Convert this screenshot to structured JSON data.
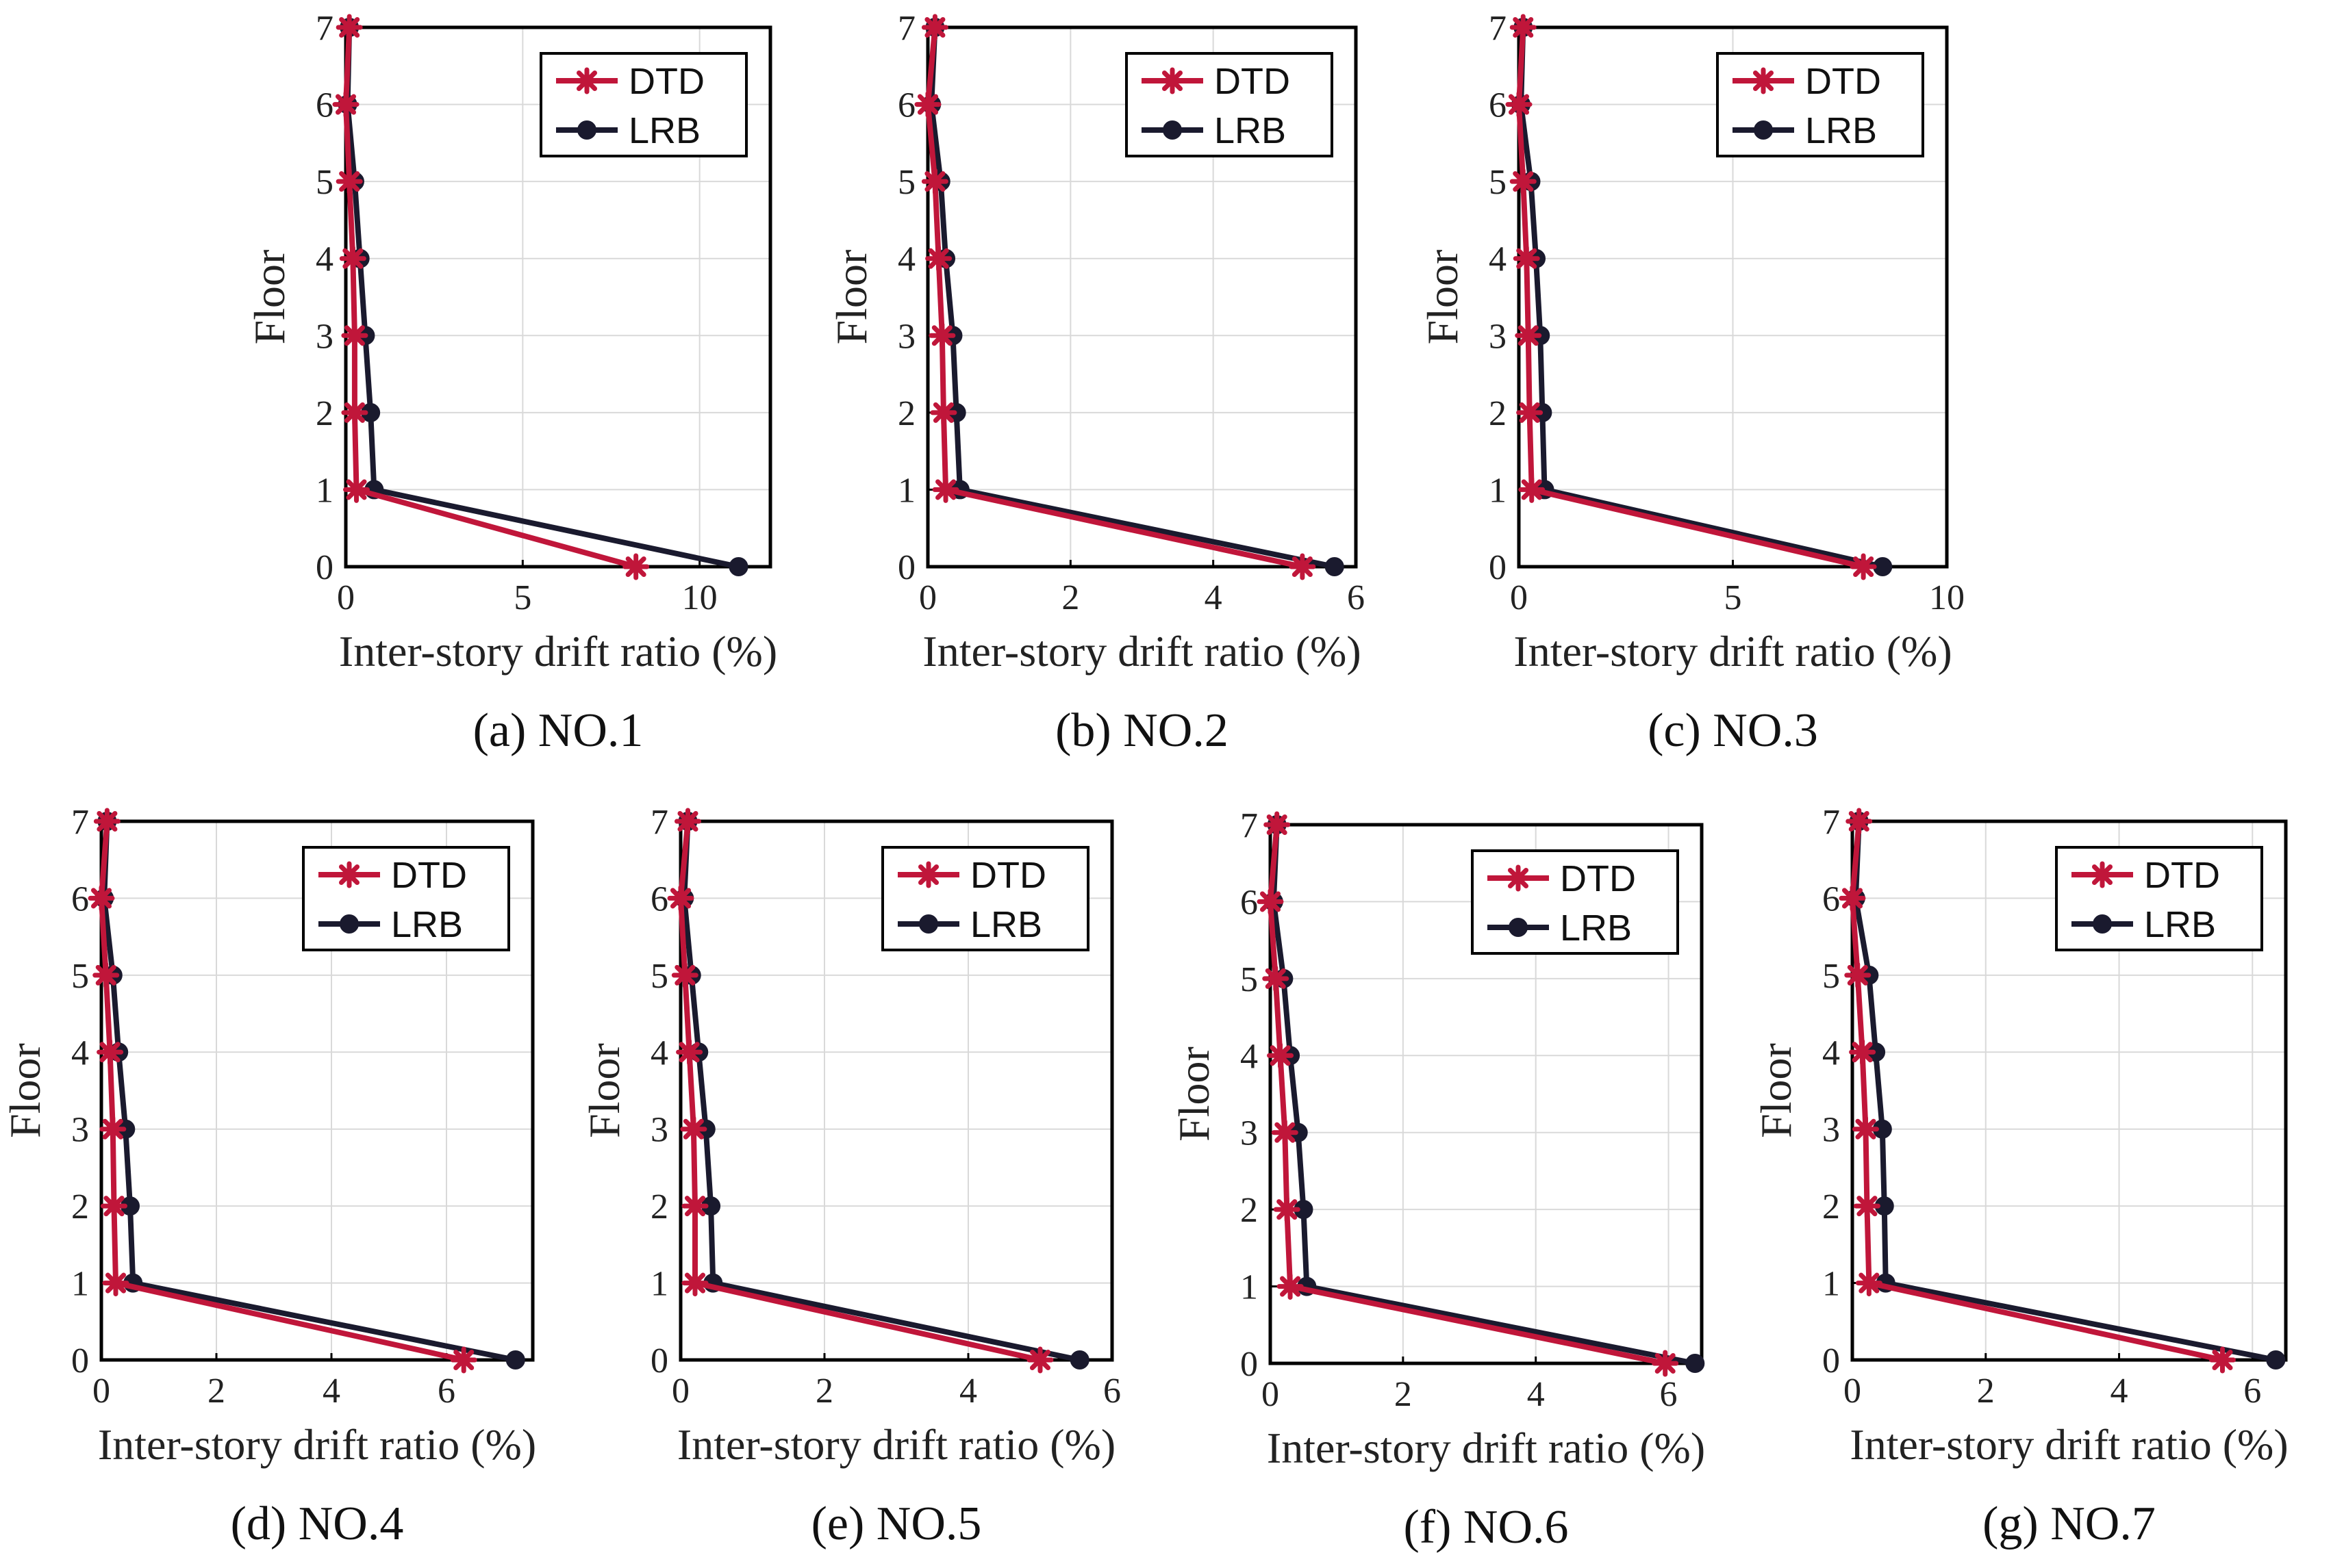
{
  "figure": {
    "colors": {
      "DTD": "#c0163a",
      "LRB": "#1a1a2e"
    },
    "legend_labels": [
      "DTD",
      "LRB"
    ]
  },
  "chart_data": [
    {
      "type": "line",
      "caption": "(a) NO.1",
      "xlabel": "Inter-story drift ratio (%)",
      "ylabel": "Floor",
      "xlim": [
        0,
        12
      ],
      "ylim": [
        0,
        7
      ],
      "xticks": [
        0,
        5,
        10
      ],
      "yticks": [
        0,
        1,
        2,
        3,
        4,
        5,
        6,
        7
      ],
      "grid": true,
      "legend": "top-right",
      "series": [
        {
          "name": "DTD",
          "x": [
            8.2,
            0.3,
            0.25,
            0.25,
            0.2,
            0.1,
            0.0,
            0.1
          ],
          "y": [
            0,
            1,
            2,
            3,
            4,
            5,
            6,
            7
          ]
        },
        {
          "name": "LRB",
          "x": [
            11.1,
            0.8,
            0.7,
            0.55,
            0.4,
            0.25,
            0.05,
            0.1
          ],
          "y": [
            0,
            1,
            2,
            3,
            4,
            5,
            6,
            7
          ]
        }
      ]
    },
    {
      "type": "line",
      "caption": "(b) NO.2",
      "xlabel": "Inter-story drift ratio (%)",
      "ylabel": "Floor",
      "xlim": [
        0,
        6
      ],
      "ylim": [
        0,
        7
      ],
      "xticks": [
        0,
        2,
        4,
        6
      ],
      "yticks": [
        0,
        1,
        2,
        3,
        4,
        5,
        6,
        7
      ],
      "grid": true,
      "legend": "top-right",
      "series": [
        {
          "name": "DTD",
          "x": [
            5.25,
            0.25,
            0.22,
            0.2,
            0.15,
            0.1,
            0.0,
            0.1
          ],
          "y": [
            0,
            1,
            2,
            3,
            4,
            5,
            6,
            7
          ]
        },
        {
          "name": "LRB",
          "x": [
            5.7,
            0.45,
            0.4,
            0.35,
            0.25,
            0.18,
            0.05,
            0.1
          ],
          "y": [
            0,
            1,
            2,
            3,
            4,
            5,
            6,
            7
          ]
        }
      ]
    },
    {
      "type": "line",
      "caption": "(c) NO.3",
      "xlabel": "Inter-story drift ratio (%)",
      "ylabel": "Floor",
      "xlim": [
        0,
        10
      ],
      "ylim": [
        0,
        7
      ],
      "xticks": [
        0,
        5,
        10
      ],
      "yticks": [
        0,
        1,
        2,
        3,
        4,
        5,
        6,
        7
      ],
      "grid": true,
      "legend": "top-right",
      "series": [
        {
          "name": "DTD",
          "x": [
            8.05,
            0.3,
            0.25,
            0.22,
            0.18,
            0.1,
            0.0,
            0.1
          ],
          "y": [
            0,
            1,
            2,
            3,
            4,
            5,
            6,
            7
          ]
        },
        {
          "name": "LRB",
          "x": [
            8.5,
            0.6,
            0.55,
            0.5,
            0.4,
            0.28,
            0.05,
            0.1
          ],
          "y": [
            0,
            1,
            2,
            3,
            4,
            5,
            6,
            7
          ]
        }
      ]
    },
    {
      "type": "line",
      "caption": "(d) NO.4",
      "xlabel": "Inter-story drift ratio (%)",
      "ylabel": "Floor",
      "xlim": [
        0,
        7.5
      ],
      "ylim": [
        0,
        7
      ],
      "xticks": [
        0,
        2,
        4,
        6
      ],
      "yticks": [
        0,
        1,
        2,
        3,
        4,
        5,
        6,
        7
      ],
      "grid": true,
      "legend": "top-right",
      "series": [
        {
          "name": "DTD",
          "x": [
            6.3,
            0.25,
            0.22,
            0.2,
            0.15,
            0.08,
            0.0,
            0.1
          ],
          "y": [
            0,
            1,
            2,
            3,
            4,
            5,
            6,
            7
          ]
        },
        {
          "name": "LRB",
          "x": [
            7.2,
            0.55,
            0.5,
            0.42,
            0.3,
            0.2,
            0.05,
            0.1
          ],
          "y": [
            0,
            1,
            2,
            3,
            4,
            5,
            6,
            7
          ]
        }
      ]
    },
    {
      "type": "line",
      "caption": "(e) NO.5",
      "xlabel": "Inter-story drift ratio (%)",
      "ylabel": "Floor",
      "xlim": [
        0,
        6
      ],
      "ylim": [
        0,
        7
      ],
      "xticks": [
        0,
        2,
        4,
        6
      ],
      "yticks": [
        0,
        1,
        2,
        3,
        4,
        5,
        6,
        7
      ],
      "grid": true,
      "legend": "top-right",
      "series": [
        {
          "name": "DTD",
          "x": [
            5.0,
            0.2,
            0.2,
            0.18,
            0.12,
            0.06,
            0.0,
            0.1
          ],
          "y": [
            0,
            1,
            2,
            3,
            4,
            5,
            6,
            7
          ]
        },
        {
          "name": "LRB",
          "x": [
            5.55,
            0.45,
            0.42,
            0.35,
            0.25,
            0.15,
            0.05,
            0.1
          ],
          "y": [
            0,
            1,
            2,
            3,
            4,
            5,
            6,
            7
          ]
        }
      ]
    },
    {
      "type": "line",
      "caption": "(f) NO.6",
      "xlabel": "Inter-story drift ratio (%)",
      "ylabel": "Floor",
      "xlim": [
        0,
        6.5
      ],
      "ylim": [
        0,
        7
      ],
      "xticks": [
        0,
        2,
        4,
        6
      ],
      "yticks": [
        0,
        1,
        2,
        3,
        4,
        5,
        6,
        7
      ],
      "grid": true,
      "legend": "top-right",
      "series": [
        {
          "name": "DTD",
          "x": [
            5.95,
            0.3,
            0.25,
            0.22,
            0.15,
            0.08,
            0.0,
            0.1
          ],
          "y": [
            0,
            1,
            2,
            3,
            4,
            5,
            6,
            7
          ]
        },
        {
          "name": "LRB",
          "x": [
            6.4,
            0.55,
            0.5,
            0.42,
            0.3,
            0.2,
            0.05,
            0.1
          ],
          "y": [
            0,
            1,
            2,
            3,
            4,
            5,
            6,
            7
          ]
        }
      ]
    },
    {
      "type": "line",
      "caption": "(g) NO.7",
      "xlabel": "Inter-story drift ratio (%)",
      "ylabel": "Floor",
      "xlim": [
        0,
        6.5
      ],
      "ylim": [
        0,
        7
      ],
      "xticks": [
        0,
        2,
        4,
        6
      ],
      "yticks": [
        0,
        1,
        2,
        3,
        4,
        5,
        6,
        7
      ],
      "grid": true,
      "legend": "top-right",
      "series": [
        {
          "name": "DTD",
          "x": [
            5.55,
            0.25,
            0.22,
            0.2,
            0.15,
            0.08,
            0.0,
            0.1
          ],
          "y": [
            0,
            1,
            2,
            3,
            4,
            5,
            6,
            7
          ]
        },
        {
          "name": "LRB",
          "x": [
            6.35,
            0.5,
            0.48,
            0.45,
            0.35,
            0.25,
            0.05,
            0.1
          ],
          "y": [
            0,
            1,
            2,
            3,
            4,
            5,
            6,
            7
          ]
        }
      ]
    }
  ]
}
